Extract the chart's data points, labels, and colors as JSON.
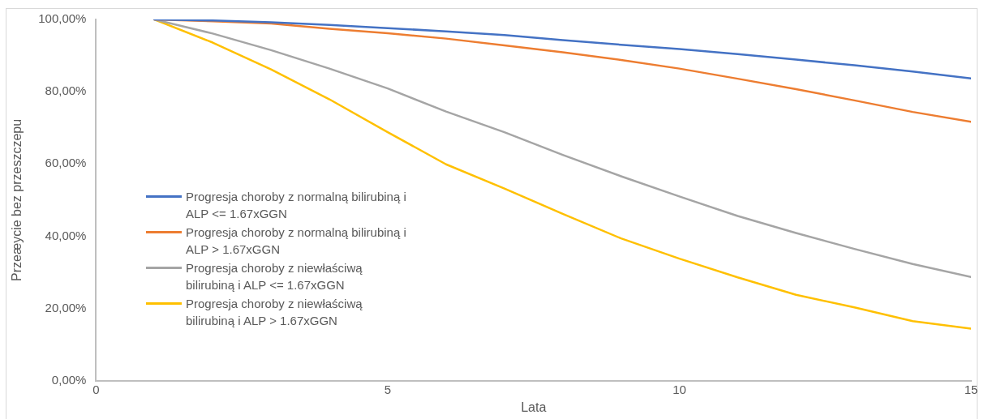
{
  "chart_data": {
    "type": "line",
    "xlabel": "Lata",
    "ylabel": "Przeæycie bez przeszczepu",
    "x": [
      1,
      2,
      3,
      4,
      5,
      6,
      7,
      8,
      9,
      10,
      11,
      12,
      13,
      14,
      15
    ],
    "series": [
      {
        "name": "Progresja choroby z normalną bilirubiną i ALP <= 1.67xGGN",
        "color": "#4472c4",
        "values": [
          100,
          99.7,
          99.2,
          98.5,
          97.6,
          96.7,
          95.7,
          94.3,
          93.0,
          91.8,
          90.4,
          88.9,
          87.3,
          85.6,
          83.7
        ]
      },
      {
        "name": "Progresja choroby z normalną bilirubiną i ALP > 1.67xGGN",
        "color": "#ed7d31",
        "values": [
          100,
          99.5,
          98.9,
          97.4,
          96.2,
          94.7,
          92.8,
          90.9,
          88.8,
          86.4,
          83.6,
          80.7,
          77.6,
          74.4,
          71.7
        ]
      },
      {
        "name": "Progresja choroby z niewłaściwą bilirubiną i ALP <= 1.67xGGN",
        "color": "#a5a5a5",
        "values": [
          100,
          96.1,
          91.5,
          86.4,
          80.9,
          74.5,
          68.8,
          62.5,
          56.6,
          51.0,
          45.6,
          40.9,
          36.5,
          32.3,
          28.7
        ]
      },
      {
        "name": "Progresja choroby z niewłaściwą bilirubiną i ALP > 1.67xGGN",
        "color": "#ffc000",
        "values": [
          100,
          93.6,
          86.2,
          77.9,
          68.8,
          59.9,
          53.2,
          46.2,
          39.4,
          33.8,
          28.6,
          23.8,
          20.3,
          16.5,
          14.4
        ]
      }
    ],
    "xlim": [
      0,
      15
    ],
    "xticks": [
      0,
      5,
      10,
      15
    ],
    "ylim": [
      0,
      100
    ],
    "yticks": [
      {
        "value": 0,
        "label": "0,00%"
      },
      {
        "value": 20,
        "label": "20,00%"
      },
      {
        "value": 40,
        "label": "40,00%"
      },
      {
        "value": 60,
        "label": "60,00%"
      },
      {
        "value": 80,
        "label": "80,00%"
      },
      {
        "value": 100,
        "label": "100,00%"
      }
    ],
    "grid": false,
    "legend": "left",
    "marker": "none",
    "line_style": "solid"
  }
}
